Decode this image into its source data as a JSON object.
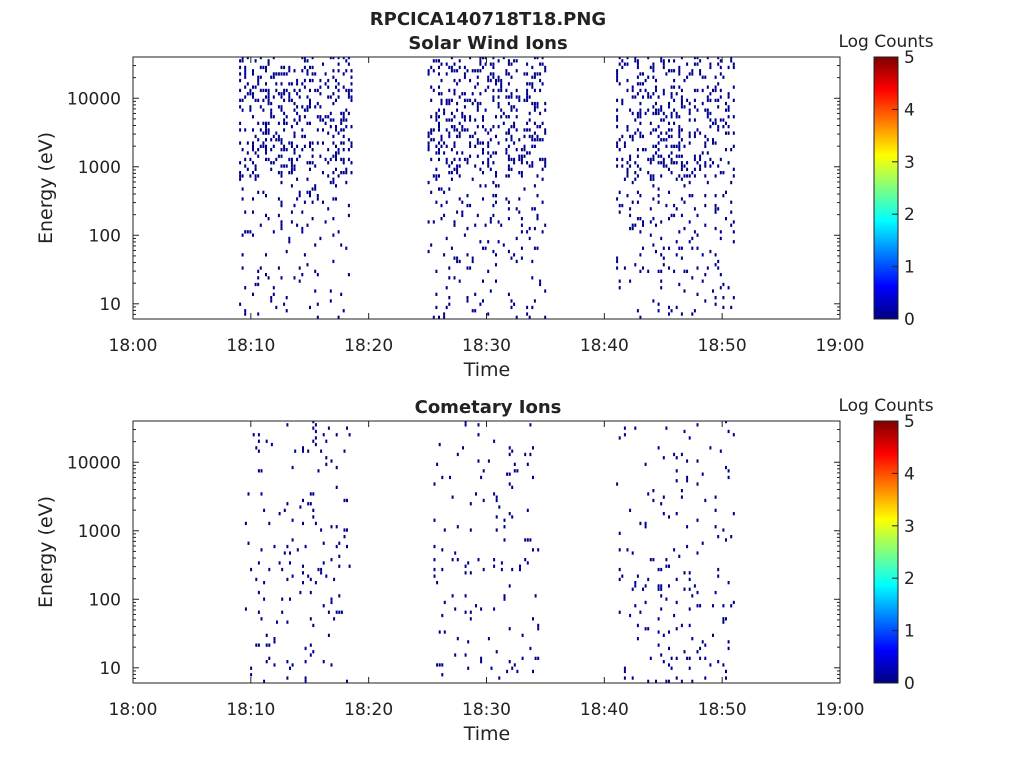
{
  "figure_title": "RPCICA140718T18.PNG",
  "colors": {
    "axis": "#222222",
    "mark": "#00008f",
    "colormap": [
      "#00007f",
      "#0000ff",
      "#007fff",
      "#00ffff",
      "#7fff7f",
      "#ffff00",
      "#ff7f00",
      "#ff0000",
      "#7f0000"
    ]
  },
  "chart_data": [
    {
      "type": "heatmap",
      "title": "Solar Wind Ions",
      "xlabel": "Time",
      "ylabel": "Energy (eV)",
      "x_ticks": [
        "18:00",
        "18:10",
        "18:20",
        "18:30",
        "18:40",
        "18:50",
        "19:00"
      ],
      "xlim_minutes": [
        0,
        60
      ],
      "y_ticks": [
        "10",
        "100",
        "1000",
        "10000"
      ],
      "y_tick_values": [
        10,
        100,
        1000,
        10000
      ],
      "ylim": [
        6,
        40000
      ],
      "y_scale": "log",
      "colorbar": {
        "label": "Log Counts",
        "ticks": [
          "0",
          "1",
          "2",
          "3",
          "4",
          "5"
        ],
        "range": [
          0,
          5
        ]
      },
      "bursts_minutes": [
        [
          9.0,
          18.5
        ],
        [
          25.0,
          34.9
        ],
        [
          41.0,
          50.9
        ]
      ],
      "observed_log_counts": 0
    },
    {
      "type": "heatmap",
      "title": "Cometary Ions",
      "xlabel": "Time",
      "ylabel": "Energy (eV)",
      "x_ticks": [
        "18:00",
        "18:10",
        "18:20",
        "18:30",
        "18:40",
        "18:50",
        "19:00"
      ],
      "xlim_minutes": [
        0,
        60
      ],
      "y_ticks": [
        "10",
        "100",
        "1000",
        "10000"
      ],
      "y_tick_values": [
        10,
        100,
        1000,
        10000
      ],
      "ylim": [
        6,
        40000
      ],
      "y_scale": "log",
      "colorbar": {
        "label": "Log Counts",
        "ticks": [
          "0",
          "1",
          "2",
          "3",
          "4",
          "5"
        ],
        "range": [
          0,
          5
        ]
      },
      "bursts_minutes": [
        [
          9.5,
          18.5
        ],
        [
          25.5,
          34.5
        ],
        [
          41.0,
          50.9
        ]
      ],
      "observed_log_counts": 0
    }
  ]
}
